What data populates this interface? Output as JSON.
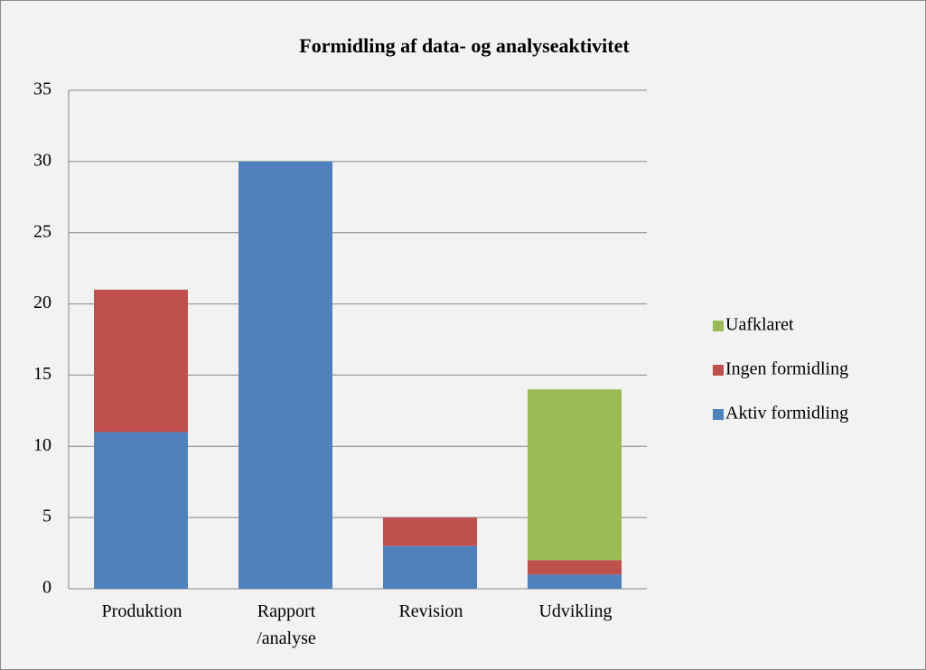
{
  "chart_data": {
    "type": "stacked_bar",
    "title": "Formidling af data- og analyseaktivitet",
    "categories": [
      "Produktion",
      "Rapport /analyse",
      "Revision",
      "Udvikling"
    ],
    "series": [
      {
        "name": "Aktiv formidling",
        "color": "#4f81bd",
        "values": [
          11,
          30,
          3,
          1
        ]
      },
      {
        "name": "Ingen formidling",
        "color": "#c0504d",
        "values": [
          10,
          0,
          2,
          1
        ]
      },
      {
        "name": "Uafklaret",
        "color": "#9bbb59",
        "values": [
          0,
          0,
          0,
          12
        ]
      }
    ],
    "ylim": [
      0,
      35
    ],
    "yticks": [
      0,
      5,
      10,
      15,
      20,
      25,
      30,
      35
    ],
    "grid": true,
    "legend": "right"
  }
}
